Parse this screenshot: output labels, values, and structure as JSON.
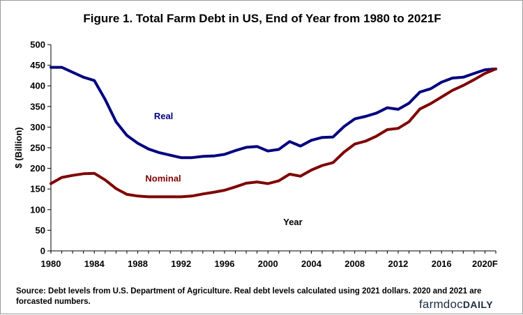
{
  "chart_data": {
    "type": "line",
    "title": "Figure 1.   Total Farm Debt in US, End of Year from 1980 to 2021F",
    "xlabel": "Year",
    "ylabel": "$ (Billion)",
    "ylim": [
      0,
      500
    ],
    "yticks": [
      "0",
      "50",
      "100",
      "150",
      "200",
      "250",
      "300",
      "350",
      "400",
      "450",
      "500"
    ],
    "xlim": [
      1980,
      2021
    ],
    "xticks": [
      {
        "value": 1980,
        "label": "1980"
      },
      {
        "value": 1984,
        "label": "1984"
      },
      {
        "value": 1988,
        "label": "1988"
      },
      {
        "value": 1992,
        "label": "1992"
      },
      {
        "value": 1996,
        "label": "1996"
      },
      {
        "value": 2000,
        "label": "2000"
      },
      {
        "value": 2004,
        "label": "2004"
      },
      {
        "value": 2008,
        "label": "2008"
      },
      {
        "value": 2012,
        "label": "2012"
      },
      {
        "value": 2016,
        "label": "2016"
      },
      {
        "value": 2020,
        "label": "2020F"
      }
    ],
    "x": [
      1980,
      1981,
      1982,
      1983,
      1984,
      1985,
      1986,
      1987,
      1988,
      1989,
      1990,
      1991,
      1992,
      1993,
      1994,
      1995,
      1996,
      1997,
      1998,
      1999,
      2000,
      2001,
      2002,
      2003,
      2004,
      2005,
      2006,
      2007,
      2008,
      2009,
      2010,
      2011,
      2012,
      2013,
      2014,
      2015,
      2016,
      2017,
      2018,
      2019,
      2020,
      2021
    ],
    "series": [
      {
        "name": "Real",
        "color": "#00007f",
        "values": [
          445,
          445,
          433,
          421,
          413,
          367,
          313,
          280,
          261,
          247,
          238,
          232,
          226,
          226,
          229,
          230,
          234,
          243,
          251,
          253,
          242,
          246,
          265,
          254,
          268,
          275,
          276,
          301,
          320,
          326,
          334,
          347,
          343,
          358,
          385,
          393,
          409,
          419,
          421,
          430,
          439,
          441
        ]
      },
      {
        "name": "Nominal",
        "color": "#7f0000",
        "values": [
          163,
          178,
          183,
          187,
          188,
          172,
          151,
          137,
          133,
          131,
          131,
          131,
          131,
          133,
          138,
          142,
          147,
          155,
          164,
          167,
          163,
          170,
          186,
          181,
          196,
          207,
          214,
          239,
          259,
          266,
          278,
          294,
          297,
          313,
          344,
          357,
          373,
          389,
          401,
          415,
          430,
          441
        ]
      }
    ]
  },
  "source_note": "Source: Debt levels from U.S. Department of Agriculture.  Real debt levels calculated using 2021 dollars.   2020 and 2021 are forcasted numbers.",
  "brand": {
    "part1": "farmdoc",
    "part2": "DAILY"
  }
}
